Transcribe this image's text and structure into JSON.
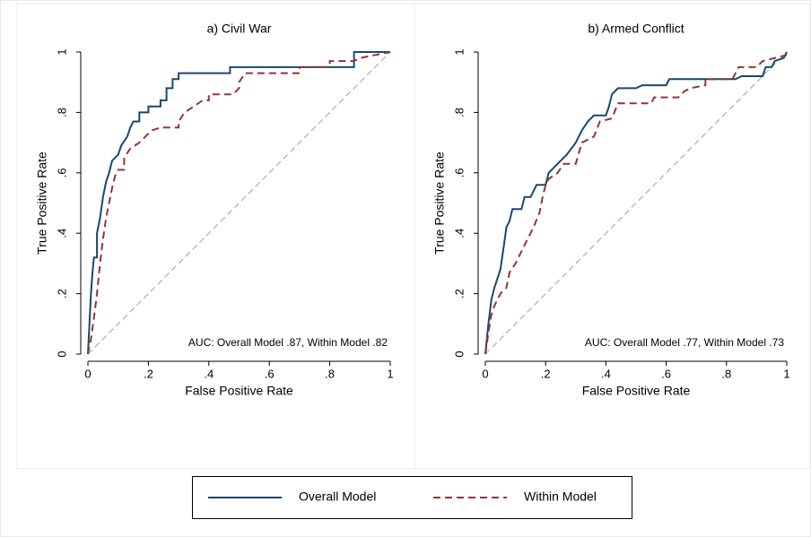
{
  "chart_data": [
    {
      "type": "line",
      "title": "a) Civil War",
      "x_label": "False Positive Rate",
      "y_label": "True Positive Rate",
      "annotation": "AUC: Overall Model .87, Within Model .82",
      "xlim": [
        0,
        1
      ],
      "ylim": [
        0,
        1
      ],
      "xticks": [
        0,
        {
          "value": 0.2,
          "label": ".2"
        },
        {
          "value": 0.4,
          "label": ".4"
        },
        {
          "value": 0.6,
          "label": ".6"
        },
        {
          "value": 0.8,
          "label": ".8"
        },
        1
      ],
      "yticks": [
        0,
        {
          "value": 0.2,
          "label": ".2"
        },
        {
          "value": 0.4,
          "label": ".4"
        },
        {
          "value": 0.6,
          "label": ".6"
        },
        {
          "value": 0.8,
          "label": ".8"
        },
        1
      ],
      "series": [
        {
          "x": [
            0,
            0.005,
            0.01,
            0.015,
            0.02,
            0.03,
            0.03,
            0.04,
            0.05,
            0.06,
            0.07,
            0.08,
            0.1,
            0.11,
            0.13,
            0.14,
            0.15,
            0.17,
            0.17,
            0.2,
            0.2,
            0.24,
            0.24,
            0.26,
            0.26,
            0.28,
            0.28,
            0.3,
            0.3,
            0.47,
            0.47,
            0.88,
            0.88,
            1
          ],
          "values": [
            0,
            0.1,
            0.2,
            0.27,
            0.32,
            0.32,
            0.4,
            0.45,
            0.52,
            0.57,
            0.6,
            0.64,
            0.66,
            0.69,
            0.72,
            0.75,
            0.77,
            0.77,
            0.8,
            0.8,
            0.82,
            0.82,
            0.84,
            0.84,
            0.88,
            0.88,
            0.91,
            0.91,
            0.93,
            0.93,
            0.95,
            0.95,
            1,
            1
          ]
        },
        {
          "x": [
            0,
            0.01,
            0.02,
            0.03,
            0.04,
            0.05,
            0.06,
            0.07,
            0.08,
            0.09,
            0.1,
            0.12,
            0.12,
            0.14,
            0.17,
            0.19,
            0.21,
            0.24,
            0.3,
            0.3,
            0.32,
            0.35,
            0.38,
            0.4,
            0.4,
            0.48,
            0.5,
            0.5,
            0.52,
            0.7,
            0.7,
            0.8,
            0.8,
            0.88,
            0.9,
            1
          ],
          "values": [
            0,
            0.05,
            0.12,
            0.2,
            0.3,
            0.38,
            0.45,
            0.5,
            0.55,
            0.59,
            0.61,
            0.61,
            0.65,
            0.68,
            0.7,
            0.72,
            0.74,
            0.75,
            0.75,
            0.77,
            0.8,
            0.82,
            0.84,
            0.84,
            0.86,
            0.86,
            0.88,
            0.9,
            0.93,
            0.93,
            0.95,
            0.95,
            0.97,
            0.97,
            0.98,
            1
          ]
        }
      ]
    },
    {
      "type": "line",
      "title": "b) Armed Conflict",
      "x_label": "False Positive Rate",
      "y_label": "True Positive Rate",
      "annotation": "AUC: Overall Model .77, Within Model .73",
      "xlim": [
        0,
        1
      ],
      "ylim": [
        0,
        1
      ],
      "xticks": [
        0,
        {
          "value": 0.2,
          "label": ".2"
        },
        {
          "value": 0.4,
          "label": ".4"
        },
        {
          "value": 0.6,
          "label": ".6"
        },
        {
          "value": 0.8,
          "label": ".8"
        },
        1
      ],
      "yticks": [
        0,
        {
          "value": 0.2,
          "label": ".2"
        },
        {
          "value": 0.4,
          "label": ".4"
        },
        {
          "value": 0.6,
          "label": ".6"
        },
        {
          "value": 0.8,
          "label": ".8"
        },
        1
      ],
      "series": [
        {
          "x": [
            0,
            0.01,
            0.02,
            0.03,
            0.05,
            0.06,
            0.07,
            0.08,
            0.09,
            0.12,
            0.13,
            0.15,
            0.17,
            0.2,
            0.21,
            0.24,
            0.27,
            0.3,
            0.32,
            0.34,
            0.36,
            0.4,
            0.41,
            0.42,
            0.44,
            0.5,
            0.52,
            0.6,
            0.61,
            0.83,
            0.85,
            0.92,
            0.93,
            0.95,
            0.96,
            0.99,
            1
          ],
          "values": [
            0,
            0.1,
            0.18,
            0.22,
            0.28,
            0.35,
            0.42,
            0.44,
            0.48,
            0.48,
            0.52,
            0.52,
            0.56,
            0.56,
            0.6,
            0.63,
            0.66,
            0.7,
            0.74,
            0.77,
            0.79,
            0.79,
            0.82,
            0.86,
            0.88,
            0.88,
            0.89,
            0.89,
            0.91,
            0.91,
            0.92,
            0.92,
            0.95,
            0.95,
            0.97,
            0.98,
            1
          ]
        },
        {
          "x": [
            0,
            0.01,
            0.02,
            0.03,
            0.05,
            0.07,
            0.08,
            0.1,
            0.12,
            0.14,
            0.16,
            0.18,
            0.19,
            0.2,
            0.21,
            0.24,
            0.26,
            0.3,
            0.32,
            0.36,
            0.38,
            0.42,
            0.44,
            0.55,
            0.56,
            0.64,
            0.66,
            0.68,
            0.73,
            0.73,
            0.82,
            0.84,
            0.9,
            0.92,
            1
          ],
          "values": [
            0,
            0.07,
            0.13,
            0.16,
            0.2,
            0.22,
            0.27,
            0.3,
            0.34,
            0.38,
            0.42,
            0.47,
            0.52,
            0.56,
            0.58,
            0.6,
            0.63,
            0.63,
            0.7,
            0.72,
            0.77,
            0.78,
            0.83,
            0.83,
            0.85,
            0.85,
            0.87,
            0.88,
            0.89,
            0.91,
            0.91,
            0.95,
            0.95,
            0.97,
            0.99
          ]
        }
      ]
    }
  ],
  "legend": [
    {
      "name": "Overall Model",
      "color": "#1a476f",
      "dash": false
    },
    {
      "name": "Within Model",
      "color": "#90353b",
      "dash": true
    }
  ]
}
